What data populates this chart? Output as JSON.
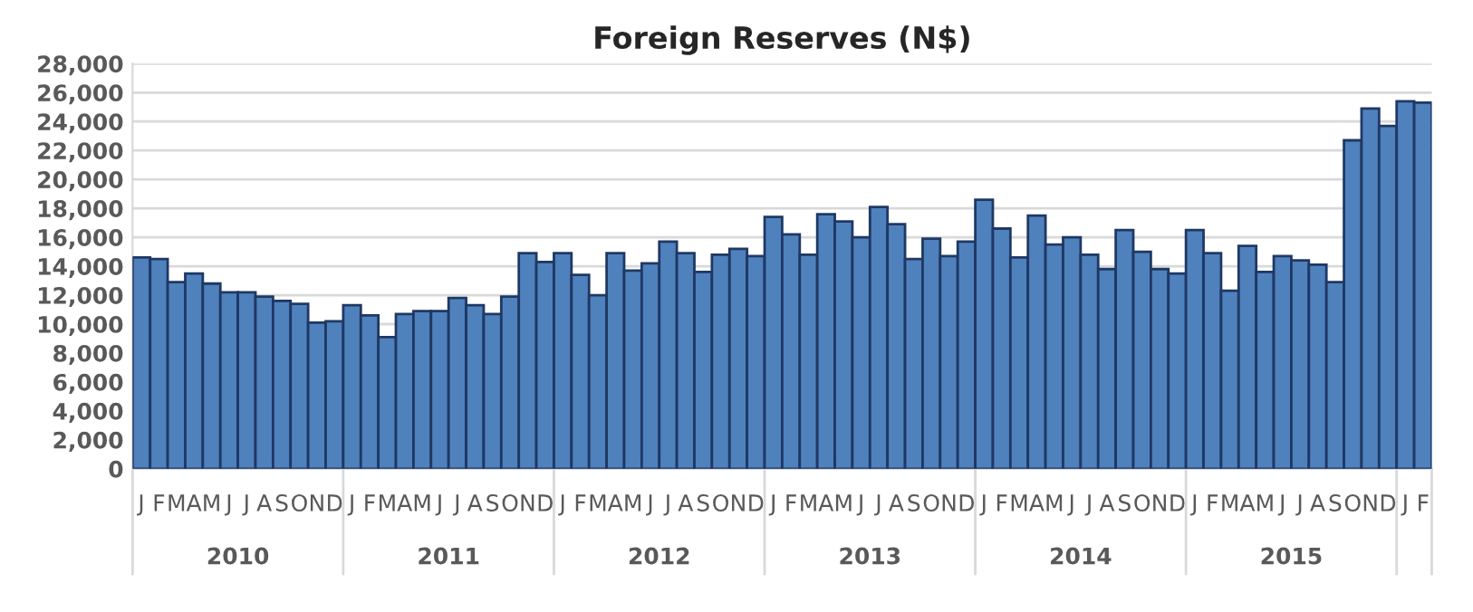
{
  "chart_data": {
    "type": "bar",
    "title": "Foreign Reserves (N$)",
    "categories": [
      "J",
      "F",
      "M",
      "A",
      "M",
      "J",
      "J",
      "A",
      "S",
      "O",
      "N",
      "D",
      "J",
      "F",
      "M",
      "A",
      "M",
      "J",
      "J",
      "A",
      "S",
      "O",
      "N",
      "D",
      "J",
      "F",
      "M",
      "A",
      "M",
      "J",
      "J",
      "A",
      "S",
      "O",
      "N",
      "D",
      "J",
      "F",
      "M",
      "A",
      "M",
      "J",
      "J",
      "A",
      "S",
      "O",
      "N",
      "D",
      "J",
      "F",
      "M",
      "A",
      "M",
      "J",
      "J",
      "A",
      "S",
      "O",
      "N",
      "D",
      "J",
      "F",
      "M",
      "A",
      "M",
      "J",
      "J",
      "A",
      "S",
      "O",
      "N",
      "D",
      "J",
      "F"
    ],
    "values": [
      14600,
      14500,
      12900,
      13500,
      12800,
      12200,
      12200,
      11900,
      11600,
      11400,
      10100,
      10200,
      11300,
      10600,
      9100,
      10700,
      10900,
      10900,
      11800,
      11300,
      10700,
      11900,
      14900,
      14300,
      14900,
      13400,
      12000,
      14900,
      13700,
      14200,
      15700,
      14900,
      13600,
      14800,
      15200,
      14700,
      17400,
      16200,
      14800,
      17600,
      17100,
      16000,
      18100,
      16900,
      14500,
      15900,
      14700,
      15700,
      18600,
      16600,
      14600,
      17500,
      15500,
      16000,
      14800,
      13800,
      16500,
      15000,
      13800,
      13500,
      16500,
      14900,
      12300,
      15400,
      13600,
      14700,
      14400,
      14100,
      12900,
      22700,
      24900,
      23700,
      25400,
      25300
    ],
    "color": "#4f81bd",
    "annotations": [
      "2010",
      "2011",
      "2012",
      "2013",
      "2014",
      "2015"
    ],
    "ylim": [
      0,
      28000
    ],
    "yticks": [
      0,
      {
        "value": 2000,
        "label": "2,000"
      },
      {
        "value": 4000,
        "label": "4,000"
      },
      {
        "value": 6000,
        "label": "6,000"
      },
      {
        "value": 8000,
        "label": "8,000"
      },
      {
        "value": 10000,
        "label": "10,000"
      },
      {
        "value": 12000,
        "label": "12,000"
      },
      {
        "value": 14000,
        "label": "14,000"
      },
      {
        "value": 16000,
        "label": "16,000"
      },
      {
        "value": 18000,
        "label": "18,000"
      },
      {
        "value": 20000,
        "label": "20,000"
      },
      {
        "value": 22000,
        "label": "22,000"
      },
      {
        "value": 24000,
        "label": "24,000"
      },
      {
        "value": 26000,
        "label": "26,000"
      },
      {
        "value": 28000,
        "label": "28,000"
      }
    ],
    "grid": "y"
  }
}
